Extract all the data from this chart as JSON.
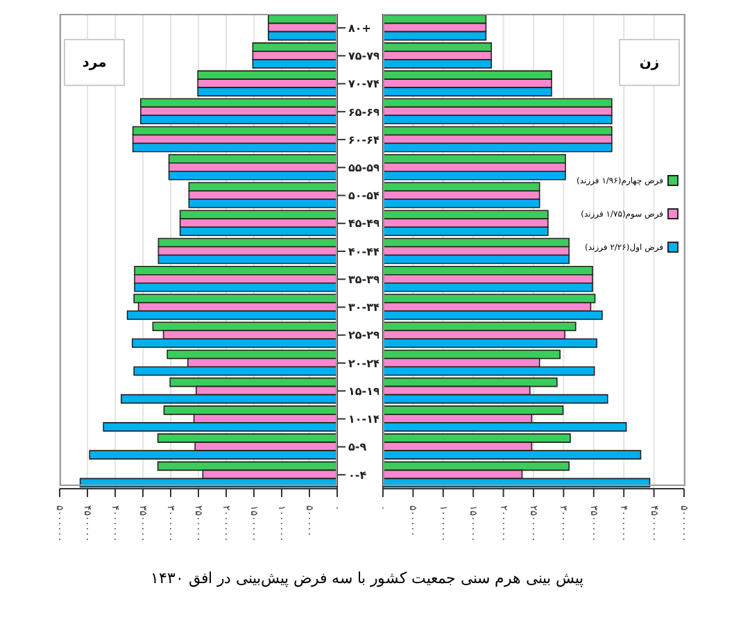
{
  "chart_data": [
    {
      "type": "bar",
      "orientation": "horizontal",
      "title": "مرد",
      "categories": [
        "۸۰+",
        "۷۵-۷۹",
        "۷۰-۷۴",
        "۶۵-۶۹",
        "۶۰-۶۴",
        "۵۵-۵۹",
        "۵۰-۵۴",
        "۴۵-۴۹",
        "۴۰-۴۴",
        "۳۵-۳۹",
        "۳۰-۳۴",
        "۲۵-۲۹",
        "۲۰-۲۴",
        "۱۵-۱۹",
        "۱۰-۱۴",
        "۵-۹",
        "۰-۴"
      ],
      "series": [
        {
          "color": "#3ccc5c",
          "values": [
            1240000,
            1520000,
            2510000,
            3540000,
            3680000,
            3030000,
            2670000,
            2830000,
            3220000,
            3650000,
            3660000,
            3320000,
            3060000,
            3010000,
            3120000,
            3230000,
            3230000
          ]
        },
        {
          "color": "#f888cc",
          "values": [
            1240000,
            1520000,
            2510000,
            3540000,
            3680000,
            3030000,
            2670000,
            2830000,
            3220000,
            3650000,
            3580000,
            3130000,
            2690000,
            2540000,
            2580000,
            2560000,
            2420000
          ]
        },
        {
          "color": "#00b0f0",
          "values": [
            1240000,
            1520000,
            2510000,
            3540000,
            3680000,
            3030000,
            2670000,
            2830000,
            3220000,
            3650000,
            3780000,
            3690000,
            3660000,
            3890000,
            4210000,
            4460000,
            4630000
          ]
        }
      ],
      "xlim": [
        5000000,
        0
      ],
      "xticks": [
        {
          "value": 0,
          "label": "۰"
        },
        {
          "value": 500000,
          "label": "۵۰۰۰۰۰"
        },
        {
          "value": 1000000,
          "label": "۱۰۰۰۰۰۰"
        },
        {
          "value": 1500000,
          "label": "۱۵۰۰۰۰۰"
        },
        {
          "value": 2000000,
          "label": "۲۰۰۰۰۰۰"
        },
        {
          "value": 2500000,
          "label": "۲۵۰۰۰۰۰"
        },
        {
          "value": 3000000,
          "label": "۳۰۰۰۰۰۰"
        },
        {
          "value": 3500000,
          "label": "۳۵۰۰۰۰۰"
        },
        {
          "value": 4000000,
          "label": "۴۰۰۰۰۰۰"
        },
        {
          "value": 4500000,
          "label": "۴۵۰۰۰۰۰"
        },
        {
          "value": 5000000,
          "label": "۵۰۰۰۰۰۰"
        }
      ],
      "grid": "x",
      "legend": false,
      "annotations": [
        "پیش بینی هرم سنی جمعیت کشور با سه فرض پیش‌بینی در افق ۱۴۳۰"
      ]
    },
    {
      "type": "bar",
      "orientation": "horizontal",
      "title": "زن",
      "categories": [
        null,
        null,
        null,
        null,
        null,
        null,
        null,
        null,
        null,
        null,
        null,
        null,
        null,
        null,
        null,
        null,
        null
      ],
      "series": [
        {
          "name": "فرض چهارم(۱/۹۶ فرزند)",
          "color": "#3ccc5c",
          "values": [
            1710000,
            1800000,
            2800000,
            3800000,
            3800000,
            3030000,
            2600000,
            2740000,
            3090000,
            3480000,
            3520000,
            3200000,
            2940000,
            2890000,
            2990000,
            3110000,
            3090000
          ]
        },
        {
          "name": "فرض سوم(۱/۷۵ فرزند)",
          "color": "#f888cc",
          "values": [
            1710000,
            1800000,
            2800000,
            3800000,
            3800000,
            3030000,
            2600000,
            2740000,
            3090000,
            3480000,
            3450000,
            3020000,
            2600000,
            2440000,
            2470000,
            2470000,
            2310000
          ]
        },
        {
          "name": "فرض اول(۲/۲۶ فرزند)",
          "color": "#00b0f0",
          "values": [
            1710000,
            1800000,
            2800000,
            3800000,
            3800000,
            3030000,
            2600000,
            2740000,
            3090000,
            3480000,
            3640000,
            3550000,
            3510000,
            3730000,
            4040000,
            4280000,
            4430000
          ]
        }
      ],
      "xlim": [
        0,
        5000000
      ],
      "xticks": [
        {
          "value": 0,
          "label": "۰"
        },
        {
          "value": 500000,
          "label": "۵۰۰۰۰۰"
        },
        {
          "value": 1000000,
          "label": "۱۰۰۰۰۰۰"
        },
        {
          "value": 1500000,
          "label": "۱۵۰۰۰۰۰"
        },
        {
          "value": 2000000,
          "label": "۲۰۰۰۰۰۰"
        },
        {
          "value": 2500000,
          "label": "۲۵۰۰۰۰۰"
        },
        {
          "value": 3000000,
          "label": "۳۰۰۰۰۰۰"
        },
        {
          "value": 3500000,
          "label": "۳۵۰۰۰۰۰"
        },
        {
          "value": 4000000,
          "label": "۴۰۰۰۰۰۰"
        },
        {
          "value": 4500000,
          "label": "۴۵۰۰۰۰۰"
        },
        {
          "value": 5000000,
          "label": "۵۰۰۰۰۰۰"
        }
      ],
      "grid": "x",
      "legend": "right",
      "tick_labels": "x"
    }
  ]
}
